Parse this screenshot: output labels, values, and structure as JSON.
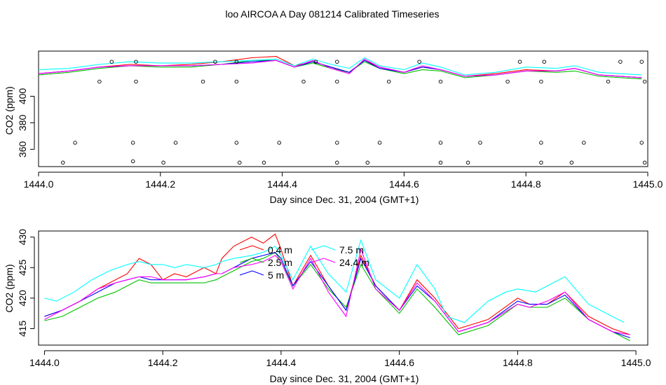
{
  "page": {
    "title": "loo AIRCOA A  Day 081214  Calibrated Timeseries"
  },
  "colors": {
    "0.4 m": "#ff0000",
    "2.5 m": "#00c000",
    "5 m": "#0000ff",
    "7.5 m": "#00ffff",
    "24.4 m": "#ff00ff",
    "axis": "#000000"
  },
  "chart_data": [
    {
      "type": "line",
      "panel": "top",
      "xlabel": "Day since Dec. 31, 2004 (GMT+1)",
      "ylabel": "CO2 (ppm)",
      "xlim": [
        1444.0,
        1445.0
      ],
      "ylim": [
        347,
        434
      ],
      "xticks": [
        "1444.0",
        "1444.2",
        "1444.4",
        "1444.6",
        "1444.8",
        "1445.0"
      ],
      "yticks": [
        "360",
        "380",
        "400"
      ],
      "legend": false,
      "series": [
        {
          "name": "0.4 m",
          "x": [
            1444.0,
            1444.05,
            1444.1,
            1444.15,
            1444.2,
            1444.25,
            1444.3,
            1444.35,
            1444.39,
            1444.42,
            1444.45,
            1444.48,
            1444.51,
            1444.535,
            1444.56,
            1444.6,
            1444.63,
            1444.66,
            1444.7,
            1444.75,
            1444.8,
            1444.85,
            1444.88,
            1444.92,
            1444.99
          ],
          "y": [
            417,
            419,
            422,
            424,
            423,
            424,
            426,
            429,
            430,
            423,
            426,
            422,
            418,
            427,
            422,
            418,
            422,
            420,
            415,
            417,
            420,
            419,
            421,
            416,
            414
          ]
        },
        {
          "name": "2.5 m",
          "x": [
            1444.0,
            1444.05,
            1444.1,
            1444.15,
            1444.2,
            1444.25,
            1444.3,
            1444.35,
            1444.39,
            1444.42,
            1444.45,
            1444.48,
            1444.51,
            1444.535,
            1444.56,
            1444.6,
            1444.63,
            1444.66,
            1444.7,
            1444.75,
            1444.8,
            1444.85,
            1444.88,
            1444.92,
            1444.99
          ],
          "y": [
            416,
            418,
            421,
            423,
            422,
            422,
            424,
            427,
            427,
            422,
            425,
            421,
            418,
            426,
            421,
            417,
            420,
            419,
            414,
            416,
            419,
            418,
            419,
            415,
            413
          ]
        },
        {
          "name": "5 m",
          "x": [
            1444.0,
            1444.05,
            1444.1,
            1444.15,
            1444.2,
            1444.25,
            1444.3,
            1444.35,
            1444.39,
            1444.42,
            1444.45,
            1444.48,
            1444.51,
            1444.535,
            1444.56,
            1444.6,
            1444.63,
            1444.66,
            1444.7,
            1444.75,
            1444.8,
            1444.85,
            1444.88,
            1444.92,
            1444.99
          ],
          "y": [
            417,
            419,
            422,
            423,
            423,
            423,
            424,
            426,
            427,
            422,
            426,
            422,
            418,
            427,
            421,
            418,
            422,
            420,
            415,
            416,
            419,
            419,
            421,
            416,
            414
          ]
        },
        {
          "name": "7.5 m",
          "x": [
            1444.0,
            1444.05,
            1444.1,
            1444.15,
            1444.2,
            1444.25,
            1444.3,
            1444.35,
            1444.39,
            1444.42,
            1444.45,
            1444.48,
            1444.51,
            1444.535,
            1444.56,
            1444.6,
            1444.63,
            1444.66,
            1444.7,
            1444.75,
            1444.8,
            1444.85,
            1444.88,
            1444.92,
            1444.99
          ],
          "y": [
            420,
            421,
            424,
            426,
            425,
            425,
            426,
            427,
            428,
            423,
            428,
            424,
            421,
            429,
            423,
            420,
            425,
            422,
            416,
            418,
            422,
            421,
            423,
            418,
            416
          ]
        },
        {
          "name": "24.4 m",
          "x": [
            1444.0,
            1444.05,
            1444.1,
            1444.15,
            1444.2,
            1444.25,
            1444.3,
            1444.35,
            1444.39,
            1444.42,
            1444.45,
            1444.48,
            1444.51,
            1444.535,
            1444.56,
            1444.6,
            1444.63,
            1444.66,
            1444.7,
            1444.75,
            1444.8,
            1444.85,
            1444.88,
            1444.92,
            1444.99
          ],
          "y": [
            417,
            419,
            422,
            423,
            423,
            423,
            424,
            425,
            427,
            422,
            427,
            421,
            417,
            428,
            422,
            418,
            423,
            420,
            415,
            416,
            419,
            419,
            421,
            416,
            414
          ]
        }
      ],
      "markers": {
        "x": [
          1444.04,
          1444.06,
          1444.1,
          1444.12,
          1444.155,
          1444.155,
          1444.16,
          1444.16,
          1444.205,
          1444.225,
          1444.27,
          1444.29,
          1444.325,
          1444.325,
          1444.325,
          1444.33,
          1444.37,
          1444.395,
          1444.435,
          1444.455,
          1444.49,
          1444.49,
          1444.49,
          1444.49,
          1444.54,
          1444.56,
          1444.575,
          1444.625,
          1444.66,
          1444.66,
          1444.66,
          1444.705,
          1444.725,
          1444.77,
          1444.79,
          1444.825,
          1444.825,
          1444.825,
          1444.83,
          1444.875,
          1444.895,
          1444.935,
          1444.955,
          1444.99,
          1444.99,
          1444.995,
          1444.995
        ],
        "y": [
          350,
          365,
          411,
          426,
          351,
          365,
          411,
          426,
          350,
          365,
          411,
          426,
          365,
          411,
          426,
          350,
          350,
          365,
          411,
          426,
          350,
          365,
          411,
          426,
          350,
          365,
          411,
          426,
          350,
          365,
          411,
          350,
          365,
          411,
          426,
          350,
          365,
          411,
          426,
          350,
          365,
          411,
          426,
          365,
          426,
          350,
          411
        ]
      }
    },
    {
      "type": "line",
      "panel": "bottom",
      "xlabel": "Day since Dec. 31, 2004 (GMT+1)",
      "ylabel": "CO2 (ppm)",
      "xlim": [
        1443.99,
        1445.02
      ],
      "ylim": [
        412.3,
        431
      ],
      "xticks": [
        "1444.0",
        "1444.2",
        "1444.4",
        "1444.6",
        "1444.8",
        "1445.0"
      ],
      "yticks": [
        "415",
        "420",
        "425",
        "430"
      ],
      "legend": "top-center",
      "series": [
        {
          "name": "0.4 m",
          "x": [
            1444.0,
            1444.03,
            1444.06,
            1444.09,
            1444.12,
            1444.14,
            1444.16,
            1444.18,
            1444.2,
            1444.22,
            1444.24,
            1444.27,
            1444.29,
            1444.3,
            1444.32,
            1444.35,
            1444.37,
            1444.39,
            1444.4,
            1444.42,
            1444.45,
            1444.48,
            1444.51,
            1444.535,
            1444.56,
            1444.6,
            1444.63,
            1444.66,
            1444.7,
            1444.75,
            1444.8,
            1444.82,
            1444.85,
            1444.88,
            1444.92,
            1444.96,
            1444.99
          ],
          "y": [
            417,
            418,
            419.5,
            421.5,
            423,
            424,
            426.5,
            425.5,
            423,
            424,
            423.5,
            425,
            424,
            426.5,
            428.5,
            430,
            429,
            430.5,
            428,
            422,
            427,
            422,
            418,
            427,
            422,
            418,
            423,
            420,
            415,
            416.5,
            420,
            419,
            419,
            421,
            417,
            415,
            414
          ]
        },
        {
          "name": "2.5 m",
          "x": [
            1444.0,
            1444.03,
            1444.06,
            1444.09,
            1444.12,
            1444.14,
            1444.16,
            1444.18,
            1444.2,
            1444.22,
            1444.24,
            1444.27,
            1444.29,
            1444.3,
            1444.32,
            1444.35,
            1444.37,
            1444.39,
            1444.4,
            1444.42,
            1444.45,
            1444.48,
            1444.51,
            1444.535,
            1444.56,
            1444.6,
            1444.63,
            1444.66,
            1444.7,
            1444.75,
            1444.8,
            1444.82,
            1444.85,
            1444.88,
            1444.92,
            1444.96,
            1444.99
          ],
          "y": [
            416.3,
            417,
            418.5,
            420,
            421,
            422,
            423,
            422.5,
            422.5,
            422.5,
            422.5,
            422.5,
            423,
            423.5,
            424.5,
            426,
            426.5,
            427.5,
            426,
            422,
            425.5,
            421.5,
            418.5,
            425.5,
            421.5,
            417.5,
            421.5,
            418.5,
            414,
            415.5,
            419,
            418.5,
            418.5,
            420,
            416.5,
            414.5,
            413
          ]
        },
        {
          "name": "5 m",
          "x": [
            1444.0,
            1444.03,
            1444.06,
            1444.09,
            1444.12,
            1444.14,
            1444.16,
            1444.18,
            1444.2,
            1444.22,
            1444.24,
            1444.27,
            1444.29,
            1444.3,
            1444.32,
            1444.35,
            1444.37,
            1444.39,
            1444.4,
            1444.42,
            1444.45,
            1444.48,
            1444.51,
            1444.535,
            1444.56,
            1444.6,
            1444.63,
            1444.66,
            1444.7,
            1444.75,
            1444.8,
            1444.82,
            1444.85,
            1444.88,
            1444.92,
            1444.96,
            1444.99
          ],
          "y": [
            417,
            418,
            419.5,
            421,
            422.5,
            423,
            423.5,
            423,
            423,
            423,
            423,
            423.5,
            424,
            424,
            425,
            426.5,
            427,
            427.5,
            426.5,
            422,
            426,
            422,
            418,
            426.5,
            422,
            418,
            422,
            419.5,
            414.5,
            416,
            419.5,
            419,
            419,
            420.5,
            416.5,
            414.5,
            413.5
          ]
        },
        {
          "name": "7.5 m",
          "x": [
            1444.0,
            1444.02,
            1444.05,
            1444.08,
            1444.11,
            1444.14,
            1444.16,
            1444.18,
            1444.2,
            1444.22,
            1444.24,
            1444.27,
            1444.29,
            1444.3,
            1444.32,
            1444.35,
            1444.37,
            1444.39,
            1444.4,
            1444.42,
            1444.45,
            1444.48,
            1444.51,
            1444.535,
            1444.56,
            1444.6,
            1444.63,
            1444.66,
            1444.68,
            1444.71,
            1444.75,
            1444.78,
            1444.8,
            1444.83,
            1444.86,
            1444.88,
            1444.92,
            1444.96,
            1444.98
          ],
          "y": [
            420,
            419.5,
            421,
            423,
            424.5,
            425.5,
            426,
            425.5,
            425.5,
            425,
            425.5,
            425,
            425.5,
            426,
            426.5,
            427,
            427.5,
            428.5,
            427,
            423,
            428.5,
            424,
            421,
            429.5,
            423,
            420,
            425.5,
            421.5,
            417,
            416,
            419.5,
            421,
            421.5,
            421,
            422.5,
            423.5,
            419,
            417,
            416
          ]
        },
        {
          "name": "24.4 m",
          "x": [
            1444.0,
            1444.03,
            1444.06,
            1444.09,
            1444.12,
            1444.14,
            1444.16,
            1444.18,
            1444.2,
            1444.22,
            1444.24,
            1444.27,
            1444.29,
            1444.3,
            1444.32,
            1444.35,
            1444.37,
            1444.39,
            1444.4,
            1444.42,
            1444.45,
            1444.48,
            1444.51,
            1444.535,
            1444.56,
            1444.6,
            1444.63,
            1444.66,
            1444.7,
            1444.75,
            1444.8,
            1444.82,
            1444.85,
            1444.88,
            1444.92,
            1444.96,
            1444.99
          ],
          "y": [
            416.5,
            418,
            419.5,
            421.5,
            422.5,
            423,
            423.5,
            423.5,
            423,
            423,
            423,
            423.5,
            424,
            424,
            425,
            425.5,
            426,
            427,
            426,
            421.5,
            426.5,
            421,
            417,
            428,
            421.5,
            418,
            422.5,
            419.5,
            414.5,
            416,
            419,
            418.5,
            419.5,
            421,
            416.5,
            414.5,
            414
          ]
        }
      ]
    }
  ]
}
